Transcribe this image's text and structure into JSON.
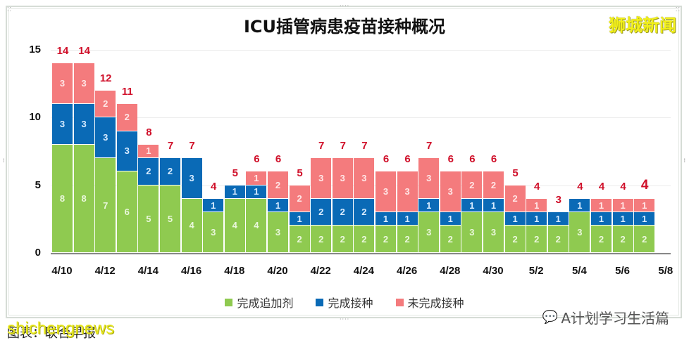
{
  "header": {
    "title": "ICU插管病患疫苗接种概况",
    "brand": "狮城新闻"
  },
  "legend": {
    "items": [
      {
        "label": "完成追加剂",
        "color": "#8fca50"
      },
      {
        "label": "完成接种",
        "color": "#0a6ab6"
      },
      {
        "label": "未完成接种",
        "color": "#f47b7d"
      }
    ]
  },
  "watermark": {
    "wechat": "A计划学习生活篇",
    "caption": "图表：联合早报",
    "overlay": "shichengnews"
  },
  "chart_data": {
    "type": "bar",
    "stacked": true,
    "title": "ICU插管病患疫苗接种概况",
    "xlabel": "",
    "ylabel": "",
    "ylim": [
      0,
      15
    ],
    "yticks": [
      0,
      5,
      10,
      15
    ],
    "grid": true,
    "legend_position": "bottom",
    "x_tick_labels": [
      "4/10",
      "4/12",
      "4/14",
      "4/16",
      "4/18",
      "4/20",
      "4/22",
      "4/24",
      "4/26",
      "4/28",
      "4/30",
      "5/2",
      "5/4",
      "5/6",
      "5/8"
    ],
    "categories": [
      "4/10",
      "4/11",
      "4/12",
      "4/13",
      "4/14",
      "4/15",
      "4/16",
      "4/17",
      "4/18",
      "4/19",
      "4/20",
      "4/21",
      "4/22",
      "4/23",
      "4/24",
      "4/25",
      "4/26",
      "4/27",
      "4/28",
      "4/29",
      "4/30",
      "5/1",
      "5/2",
      "5/3",
      "5/4",
      "5/5",
      "5/6",
      "5/7"
    ],
    "series": [
      {
        "name": "完成追加剂",
        "color": "#8fca50",
        "values": [
          8,
          8,
          7,
          6,
          5,
          5,
          4,
          3,
          4,
          4,
          3,
          2,
          2,
          2,
          2,
          2,
          2,
          3,
          2,
          3,
          3,
          2,
          2,
          2,
          3,
          2,
          2,
          2
        ]
      },
      {
        "name": "完成接种",
        "color": "#0a6ab6",
        "values": [
          3,
          3,
          3,
          3,
          2,
          2,
          3,
          1,
          1,
          1,
          1,
          1,
          2,
          2,
          2,
          1,
          1,
          1,
          1,
          1,
          1,
          1,
          1,
          1,
          1,
          1,
          1,
          1
        ]
      },
      {
        "name": "未完成接种",
        "color": "#f47b7d",
        "values": [
          3,
          3,
          2,
          2,
          1,
          0,
          0,
          0,
          0,
          1,
          2,
          2,
          3,
          3,
          3,
          3,
          3,
          3,
          3,
          2,
          2,
          2,
          1,
          0,
          0,
          1,
          1,
          1
        ]
      }
    ],
    "totals": [
      14,
      14,
      12,
      11,
      8,
      7,
      7,
      4,
      5,
      6,
      6,
      5,
      7,
      7,
      7,
      6,
      6,
      7,
      6,
      6,
      6,
      5,
      4,
      3,
      4,
      4,
      4,
      4
    ]
  }
}
